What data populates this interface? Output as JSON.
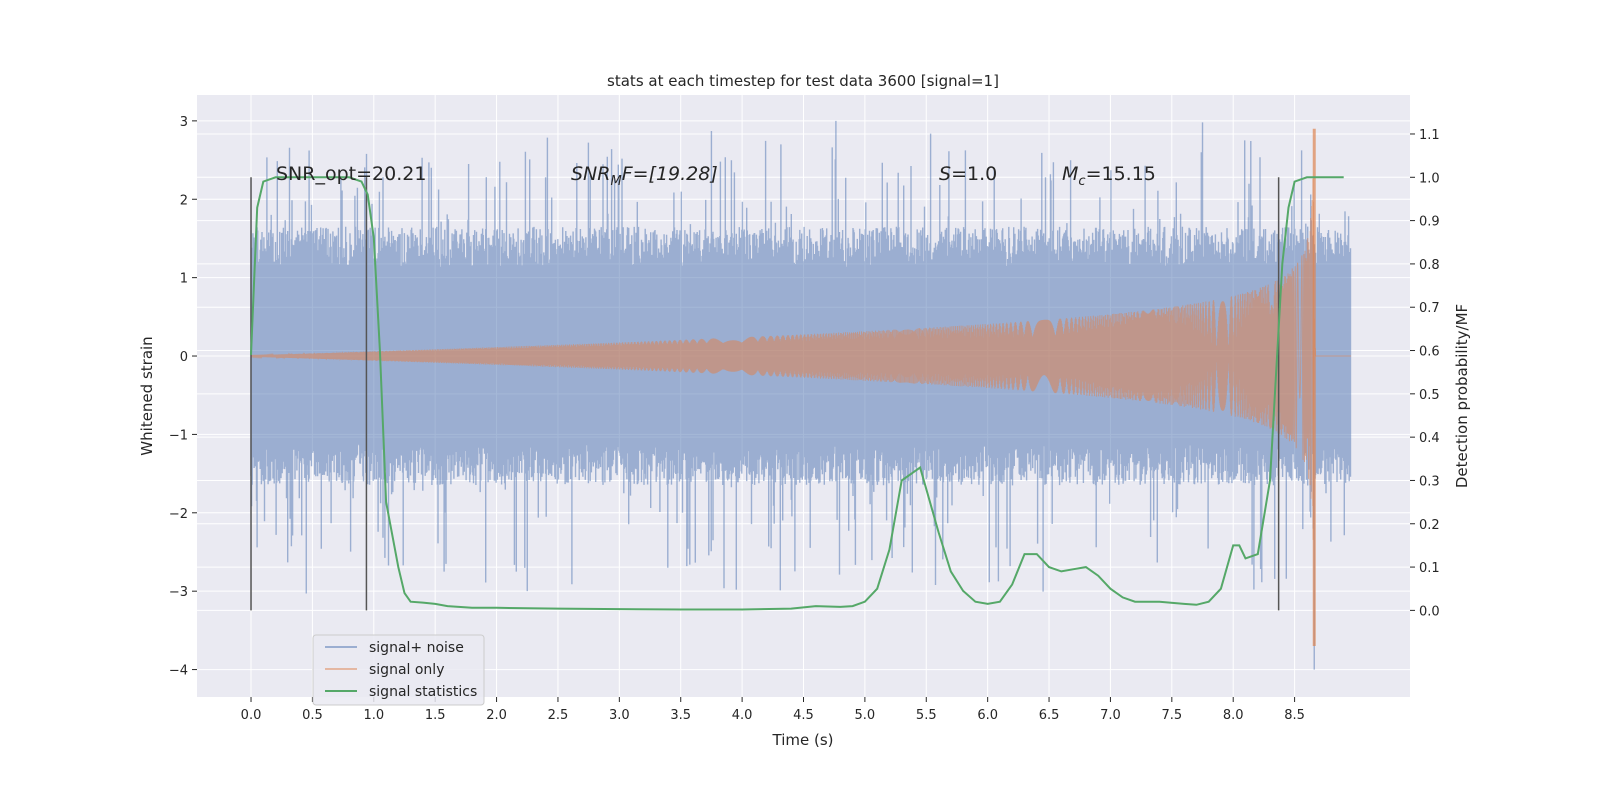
{
  "chart_data": {
    "type": "line",
    "title": "stats at each timestep for test data 3600 [signal=1]",
    "xlabel": "Time (s)",
    "ylabel": "Whitened strain",
    "ylabel_right": "Detection probability/MF",
    "xlim": [
      -0.44,
      9.44
    ],
    "ylim": [
      -4.35,
      3.33
    ],
    "ylim_right": [
      -0.2,
      1.19
    ],
    "x_ticks": [
      "0.0",
      "0.5",
      "1.0",
      "1.5",
      "2.0",
      "2.5",
      "3.0",
      "3.5",
      "4.0",
      "4.5",
      "5.0",
      "5.5",
      "6.0",
      "6.5",
      "7.0",
      "7.5",
      "8.0",
      "8.5"
    ],
    "y_ticks": [
      "−4",
      "−3",
      "−2",
      "−1",
      "0",
      "1",
      "2",
      "3"
    ],
    "y_ticks_right": [
      "0.0",
      "0.1",
      "0.2",
      "0.3",
      "0.4",
      "0.5",
      "0.6",
      "0.7",
      "0.8",
      "0.9",
      "1.0",
      "1.1"
    ],
    "grid": true,
    "legend_position": "lower-left",
    "annotations": [
      {
        "text": "SNR_opt=20.21",
        "x": 0.2
      },
      {
        "text_main": "SNR",
        "text_sub": "M",
        "text_rest": "F=[19.28]",
        "x": 2.6
      },
      {
        "text_main": "S",
        "text_rest": "=1.0",
        "x": 5.6
      },
      {
        "text_main": "M",
        "text_sub": "c",
        "text_rest": "=15.15",
        "x": 6.6
      }
    ],
    "vertical_lines_x": [
      0.0,
      0.94,
      8.37
    ],
    "series": [
      {
        "name": "signal+ noise",
        "color": "#4c72b0",
        "axis": "left",
        "t_range": [
          0.0,
          8.96
        ],
        "noise_envelope": 1.5,
        "peak_min": -4.0,
        "peak_max": 3.0
      },
      {
        "name": "signal only",
        "color": "#dd8452",
        "axis": "left",
        "t_range": [
          0.0,
          8.96
        ],
        "merger_time": 8.66,
        "peak_amplitude": 2.9
      },
      {
        "name": "signal statistics",
        "color": "#55a868",
        "axis": "right",
        "x": [
          0.0,
          0.05,
          0.1,
          0.2,
          0.3,
          0.5,
          0.7,
          0.8,
          0.9,
          0.95,
          1.0,
          1.05,
          1.1,
          1.2,
          1.25,
          1.3,
          1.4,
          1.5,
          1.6,
          1.8,
          2.0,
          2.5,
          3.0,
          3.5,
          4.0,
          4.4,
          4.6,
          4.8,
          4.9,
          5.0,
          5.1,
          5.2,
          5.3,
          5.4,
          5.45,
          5.5,
          5.6,
          5.7,
          5.8,
          5.9,
          6.0,
          6.1,
          6.2,
          6.3,
          6.4,
          6.5,
          6.6,
          6.7,
          6.8,
          6.9,
          7.0,
          7.1,
          7.2,
          7.4,
          7.6,
          7.7,
          7.8,
          7.9,
          8.0,
          8.05,
          8.1,
          8.2,
          8.3,
          8.4,
          8.45,
          8.5,
          8.6,
          8.9
        ],
        "y": [
          0.59,
          0.93,
          0.99,
          1.0,
          1.0,
          1.0,
          1.0,
          1.0,
          0.99,
          0.96,
          0.86,
          0.6,
          0.25,
          0.1,
          0.04,
          0.02,
          0.018,
          0.015,
          0.01,
          0.006,
          0.006,
          0.004,
          0.003,
          0.002,
          0.002,
          0.004,
          0.01,
          0.008,
          0.01,
          0.02,
          0.05,
          0.14,
          0.3,
          0.32,
          0.33,
          0.28,
          0.18,
          0.09,
          0.045,
          0.02,
          0.015,
          0.02,
          0.06,
          0.13,
          0.13,
          0.1,
          0.09,
          0.095,
          0.1,
          0.08,
          0.05,
          0.03,
          0.02,
          0.02,
          0.015,
          0.013,
          0.02,
          0.05,
          0.15,
          0.15,
          0.12,
          0.13,
          0.3,
          0.8,
          0.93,
          0.99,
          1.0,
          1.0
        ]
      }
    ]
  }
}
